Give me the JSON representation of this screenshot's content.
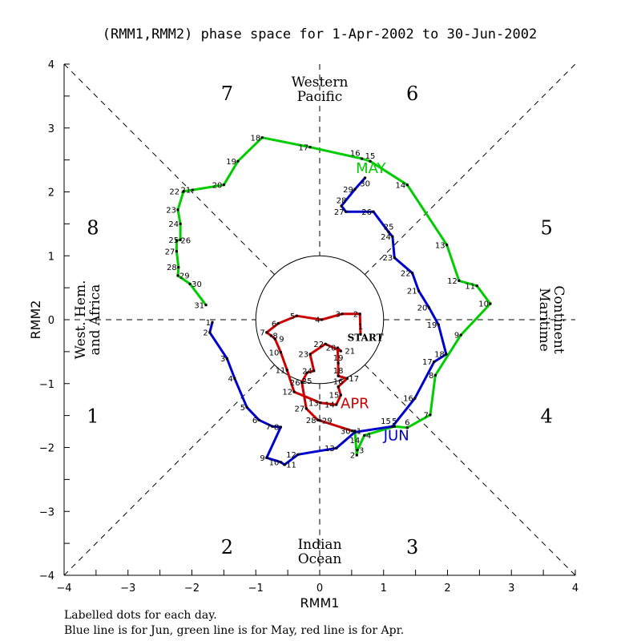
{
  "chart_data": {
    "type": "line",
    "title": "(RMM1,RMM2) phase space for  1-Apr-2002 to 30-Jun-2002",
    "xlabel": "RMM1",
    "ylabel": "RMM2",
    "xlim": [
      -4,
      4
    ],
    "ylim": [
      -4,
      4
    ],
    "xticks": [
      "-4",
      "-3",
      "-2",
      "-1",
      "0",
      "1",
      "2",
      "3",
      "4"
    ],
    "yticks": [
      "-4",
      "-3",
      "-2",
      "-1",
      "0",
      "1",
      "2",
      "3",
      "4"
    ],
    "phases": [
      {
        "label": "1",
        "pos": [
          -3.55,
          -1.5
        ]
      },
      {
        "label": "2",
        "pos": [
          -1.45,
          -3.55
        ]
      },
      {
        "label": "3",
        "pos": [
          1.45,
          -3.55
        ]
      },
      {
        "label": "4",
        "pos": [
          3.55,
          -1.5
        ]
      },
      {
        "label": "5",
        "pos": [
          3.55,
          1.45
        ]
      },
      {
        "label": "6",
        "pos": [
          1.45,
          3.55
        ]
      },
      {
        "label": "7",
        "pos": [
          -1.45,
          3.55
        ]
      },
      {
        "label": "8",
        "pos": [
          -3.55,
          1.45
        ]
      }
    ],
    "regions": {
      "top": [
        "Western",
        "Pacific"
      ],
      "bottom": [
        "Indian",
        "Ocean"
      ],
      "left": [
        "West. Hem.",
        "and Africa"
      ],
      "right": [
        "Maritime",
        "Continent"
      ]
    },
    "start_label": "START",
    "series": [
      {
        "name": "Apr",
        "label": "APR",
        "color": "#cc0000",
        "label_pos": [
          0.55,
          -1.3
        ],
        "rmm1": [
          0.64,
          0.63,
          0.35,
          0.03,
          -0.36,
          -0.65,
          -0.83,
          -0.76,
          -0.7,
          -0.61,
          -0.51,
          -0.4,
          0.01,
          0.26,
          0.33,
          0.29,
          0.43,
          0.29,
          0.29,
          0.28,
          0.33,
          0.09,
          -0.15,
          -0.09,
          -0.2,
          -0.28,
          -0.21,
          -0.03,
          0.01,
          0.51
        ],
        "rmm2": [
          -0.23,
          0.09,
          0.09,
          0.0,
          0.06,
          -0.06,
          -0.2,
          -0.25,
          -0.3,
          -0.51,
          -0.79,
          -1.13,
          -1.3,
          -1.33,
          -1.18,
          -1.05,
          -0.92,
          -0.88,
          -0.68,
          -0.44,
          -0.49,
          -0.38,
          -0.54,
          -0.8,
          -0.83,
          -0.98,
          -1.39,
          -1.57,
          -1.58,
          -1.74
        ]
      },
      {
        "name": "May",
        "label": "MAY",
        "color": "#00cc00",
        "label_pos": [
          0.8,
          2.38
        ],
        "rmm1": [
          0.55,
          0.58,
          0.59,
          0.7,
          1.17,
          1.37,
          1.73,
          1.81,
          2.21,
          2.67,
          2.46,
          2.18,
          1.99,
          1.37,
          0.79,
          0.66,
          -0.15,
          -0.9,
          -1.28,
          -1.5,
          -1.99,
          -2.13,
          -2.22,
          -2.18,
          -2.18,
          -2.24,
          -2.24,
          -2.21,
          -2.22,
          -2.03,
          -1.78
        ],
        "rmm2": [
          -1.74,
          -2.12,
          -2.04,
          -1.81,
          -1.67,
          -1.69,
          -1.49,
          -0.87,
          -0.24,
          0.25,
          0.53,
          0.61,
          1.17,
          2.11,
          2.48,
          2.52,
          2.7,
          2.85,
          2.48,
          2.11,
          2.03,
          2.01,
          1.72,
          1.5,
          1.25,
          1.24,
          1.07,
          0.82,
          0.69,
          0.56,
          0.23
        ]
      },
      {
        "name": "Jun",
        "label": "JUN",
        "color": "#0000cc",
        "label_pos": [
          1.2,
          -1.8
        ],
        "rmm1": [
          -1.68,
          -1.72,
          -1.45,
          -1.33,
          -1.14,
          -0.95,
          -0.74,
          -0.61,
          -0.83,
          -0.61,
          -0.55,
          -0.34,
          0.26,
          0.55,
          1.14,
          1.49,
          1.79,
          1.98,
          1.86,
          1.71,
          1.55,
          1.45,
          1.17,
          1.14,
          1.08,
          0.84,
          0.41,
          0.34,
          0.55,
          0.71
        ],
        "rmm2": [
          -0.04,
          -0.2,
          -0.61,
          -0.92,
          -1.37,
          -1.57,
          -1.67,
          -1.68,
          -2.16,
          -2.23,
          -2.27,
          -2.11,
          -2.01,
          -1.76,
          -1.67,
          -1.23,
          -0.66,
          -0.54,
          -0.08,
          0.19,
          0.45,
          0.73,
          0.97,
          1.3,
          1.37,
          1.69,
          1.69,
          1.78,
          2.04,
          2.22
        ]
      }
    ]
  },
  "footer": {
    "line1": "Labelled dots for each day.",
    "line2": "Blue line is for Jun, green line is for May, red line is for Apr."
  }
}
